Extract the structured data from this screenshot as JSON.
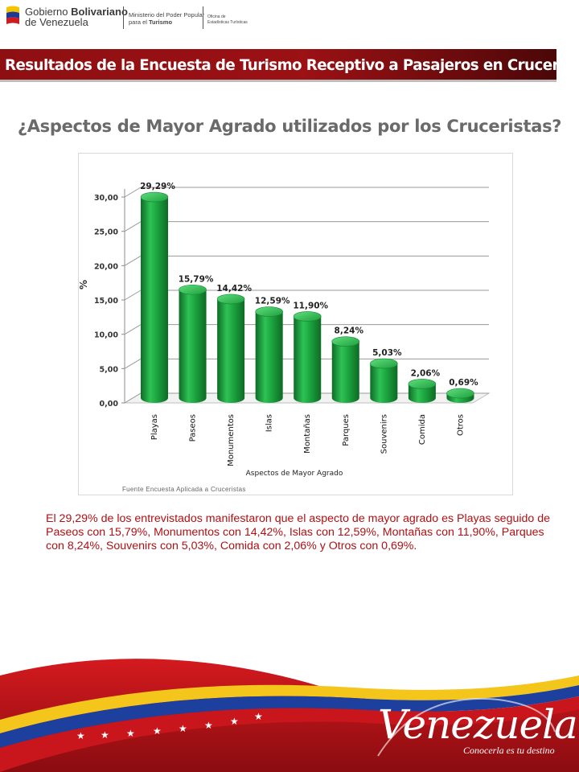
{
  "header": {
    "gov_line1_prefix": "Gobierno",
    "gov_line1_bold": "Bolivariano",
    "gov_line2": "de Venezuela",
    "ministry_line1": "Ministerio del Poder Popular",
    "ministry_line2_prefix": "para el",
    "ministry_line2_bold": "Turismo",
    "office_line1": "Oficina de",
    "office_line2": "Estadísticas Turísticas"
  },
  "banner_title": "Resultados de la Encuesta de Turismo Receptivo a Pasajeros en Cruceros",
  "chart_heading": "¿Aspectos de Mayor Agrado utilizados por los Cruceristas?",
  "source": "Fuente Encuesta Aplicada a Cruceristas",
  "summary": "El 29,29% de los entrevistados manifestaron que el aspecto de mayor agrado es Playas seguido de Paseos con 15,79%, Monumentos con 14,42%, Islas con 12,59%, Montañas con 11,90%, Parques con 8,24%, Souvenirs con 5,03%, Comida con 2,06% y Otros con 0,69%.",
  "footer": {
    "brand": "Venezuela",
    "tagline": "Conocerla es tu destino"
  },
  "colors": {
    "bar": "#1a9a3a",
    "banner": "#9b1114",
    "summary_text": "#b01014"
  },
  "chart_data": {
    "type": "bar",
    "categories": [
      "Playas",
      "Paseos",
      "Monumentos",
      "Islas",
      "Montañas",
      "Parques",
      "Souvenirs",
      "Comida",
      "Otros"
    ],
    "values": [
      29.29,
      15.79,
      14.42,
      12.59,
      11.9,
      8.24,
      5.03,
      2.06,
      0.69
    ],
    "data_labels": [
      "29,29%",
      "15,79%",
      "14,42%",
      "12,59%",
      "11,90%",
      "8,24%",
      "5,03%",
      "2,06%",
      "0,69%"
    ],
    "y_ticks": [
      "0,00",
      "5,00",
      "10,00",
      "15,00",
      "20,00",
      "25,00",
      "30,00"
    ],
    "y_tick_values": [
      0,
      5,
      10,
      15,
      20,
      25,
      30
    ],
    "ylim": [
      0,
      30
    ],
    "xlabel": "Aspectos de Mayor Agrado",
    "ylabel": "%",
    "grid": true
  }
}
